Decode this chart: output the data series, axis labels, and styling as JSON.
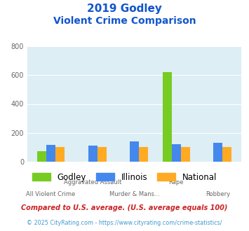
{
  "title_line1": "2019 Godley",
  "title_line2": "Violent Crime Comparison",
  "godley": [
    75,
    0,
    0,
    620,
    0
  ],
  "illinois": [
    115,
    110,
    140,
    120,
    130
  ],
  "national": [
    100,
    100,
    100,
    100,
    100
  ],
  "godley_color": "#77cc22",
  "illinois_color": "#4488ee",
  "national_color": "#ffaa22",
  "bg_color": "#ddeef4",
  "title_color": "#1155cc",
  "ylim": [
    0,
    800
  ],
  "yticks": [
    0,
    200,
    400,
    600,
    800
  ],
  "bar_width": 0.22,
  "top_labels": [
    "",
    "Aggravated Assault",
    "",
    "Rape",
    ""
  ],
  "bottom_labels": [
    "All Violent Crime",
    "",
    "Murder & Mans...",
    "",
    "Robbery"
  ],
  "footnote1": "Compared to U.S. average. (U.S. average equals 100)",
  "footnote2": "© 2025 CityRating.com - https://www.cityrating.com/crime-statistics/",
  "footnote1_color": "#cc2222",
  "footnote2_color": "#4499cc",
  "legend_labels": [
    "Godley",
    "Illinois",
    "National"
  ]
}
